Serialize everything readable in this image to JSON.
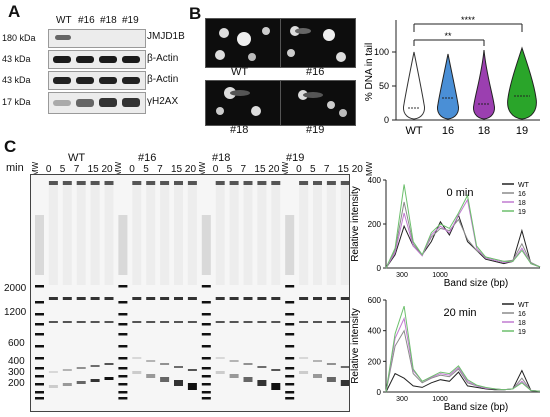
{
  "panels": {
    "A": "A",
    "B": "B",
    "C": "C"
  },
  "panel_a": {
    "lane_labels": [
      "WT",
      "#16",
      "#18",
      "#19"
    ],
    "rows": [
      {
        "kda": "180 kDa",
        "protein": "JMJD1B"
      },
      {
        "kda": "43 kDa",
        "protein": "β-Actin"
      },
      {
        "kda": "43 kDa",
        "protein": "β-Actin"
      },
      {
        "kda": "17 kDa",
        "protein": "γH2AX"
      }
    ]
  },
  "panel_b": {
    "image_labels": [
      "WT",
      "#16",
      "#18",
      "#19"
    ],
    "violin": {
      "ylabel": "% DNA in tail",
      "yticks": [
        "0",
        "50",
        "100"
      ],
      "categories": [
        "WT",
        "16",
        "18",
        "19"
      ],
      "significance": [
        "****",
        "**"
      ],
      "colors": [
        "#ffffff",
        "#4a8fd6",
        "#9b3fb0",
        "#2aa52a"
      ]
    }
  },
  "panel_c": {
    "min_label": "min",
    "mw_label": "MW",
    "groups": [
      "WT",
      "#16",
      "#18",
      "#19"
    ],
    "times": [
      "0",
      "5",
      "7",
      "15",
      "20"
    ],
    "bp_markers": [
      "2000",
      "1200",
      "600",
      "400",
      "300",
      "200"
    ]
  },
  "chart_data": [
    {
      "type": "line",
      "title": "0 min",
      "xlabel": "Band size (bp)",
      "ylabel": "Relative intensity",
      "yticks": [
        "0",
        "200",
        "400"
      ],
      "xticks": [
        "300",
        "1000"
      ],
      "ylim": [
        0,
        400
      ],
      "legend": "top-right",
      "series": [
        {
          "name": "WT",
          "color": "#222222",
          "values": [
            0,
            60,
            190,
            100,
            60,
            120,
            210,
            150,
            240,
            120,
            80,
            40,
            30,
            20,
            30,
            170,
            20,
            5
          ]
        },
        {
          "name": "16",
          "color": "#8a8a8a",
          "values": [
            0,
            80,
            300,
            110,
            60,
            140,
            180,
            170,
            220,
            130,
            80,
            50,
            40,
            30,
            35,
            110,
            25,
            5
          ]
        },
        {
          "name": "18",
          "color": "#c07ad0",
          "values": [
            0,
            70,
            250,
            100,
            55,
            150,
            190,
            160,
            240,
            310,
            90,
            45,
            35,
            25,
            30,
            90,
            20,
            5
          ]
        },
        {
          "name": "19",
          "color": "#6cbf6c",
          "values": [
            0,
            90,
            380,
            120,
            60,
            160,
            200,
            180,
            250,
            330,
            100,
            50,
            40,
            30,
            30,
            80,
            20,
            5
          ]
        }
      ]
    },
    {
      "type": "line",
      "title": "20 min",
      "xlabel": "Band size (bp)",
      "ylabel": "Relative intensity",
      "yticks": [
        "0",
        "200",
        "400",
        "600"
      ],
      "xticks": [
        "300",
        "1000"
      ],
      "ylim": [
        0,
        600
      ],
      "legend": "top-right",
      "series": [
        {
          "name": "WT",
          "color": "#222222",
          "values": [
            0,
            120,
            90,
            40,
            30,
            60,
            80,
            70,
            130,
            40,
            30,
            20,
            15,
            15,
            20,
            140,
            10,
            5
          ]
        },
        {
          "name": "16",
          "color": "#8a8a8a",
          "values": [
            0,
            300,
            400,
            120,
            60,
            90,
            110,
            100,
            150,
            60,
            40,
            25,
            20,
            15,
            20,
            90,
            10,
            5
          ]
        },
        {
          "name": "18",
          "color": "#c07ad0",
          "values": [
            0,
            350,
            480,
            140,
            70,
            95,
            120,
            110,
            160,
            70,
            40,
            25,
            20,
            15,
            20,
            70,
            10,
            5
          ]
        },
        {
          "name": "19",
          "color": "#6cbf6c",
          "values": [
            0,
            380,
            560,
            150,
            70,
            100,
            130,
            120,
            170,
            80,
            45,
            30,
            20,
            15,
            20,
            60,
            10,
            5
          ]
        }
      ]
    }
  ]
}
